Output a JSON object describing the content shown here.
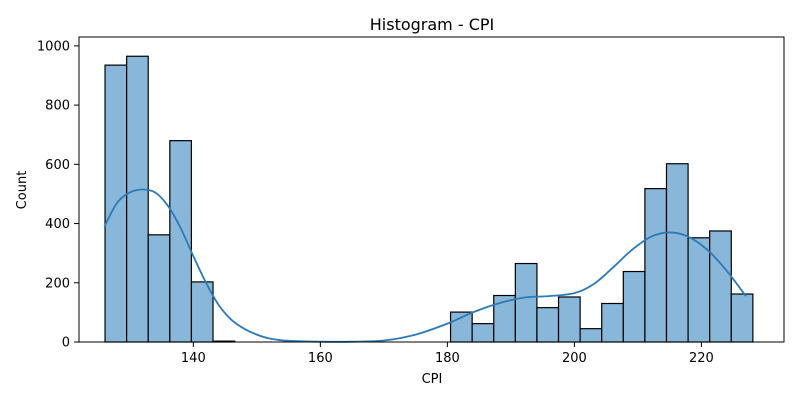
{
  "chart_data": {
    "type": "bar",
    "title": "Histogram - CPI",
    "xlabel": "CPI",
    "ylabel": "Count",
    "xlim": [
      122.0,
      233.0
    ],
    "ylim": [
      0,
      1030
    ],
    "xticks": [
      140,
      160,
      180,
      200,
      220
    ],
    "yticks": [
      0,
      200,
      400,
      600,
      800,
      1000
    ],
    "bin_edges": [
      126.1,
      129.5,
      132.9,
      136.3,
      139.7,
      143.1,
      146.5,
      149.9,
      153.3,
      156.7,
      160.1,
      163.5,
      166.9,
      170.3,
      173.7,
      177.1,
      180.5,
      183.9,
      187.3,
      190.7,
      194.1,
      197.5,
      200.9,
      204.3,
      207.7,
      211.1,
      214.5,
      217.9,
      221.3,
      224.7,
      228.1
    ],
    "values": [
      935,
      965,
      362,
      680,
      203,
      3,
      0,
      0,
      0,
      0,
      0,
      0,
      0,
      0,
      0,
      0,
      101,
      62,
      157,
      265,
      116,
      152,
      45,
      130,
      238,
      518,
      602,
      352,
      375,
      162
    ],
    "kde": {
      "x": [
        126,
        128,
        130,
        132,
        134,
        136,
        138,
        140,
        142,
        144,
        146,
        148,
        150,
        152,
        155,
        160,
        165,
        170,
        175,
        180,
        184,
        188,
        192,
        196,
        200,
        203,
        206,
        209,
        212,
        215,
        218,
        221,
        224,
        227
      ],
      "y": [
        390,
        470,
        505,
        515,
        505,
        460,
        385,
        290,
        200,
        125,
        75,
        45,
        25,
        12,
        4,
        1,
        1,
        5,
        25,
        62,
        100,
        130,
        150,
        155,
        165,
        195,
        250,
        310,
        355,
        370,
        355,
        310,
        240,
        155
      ]
    }
  }
}
